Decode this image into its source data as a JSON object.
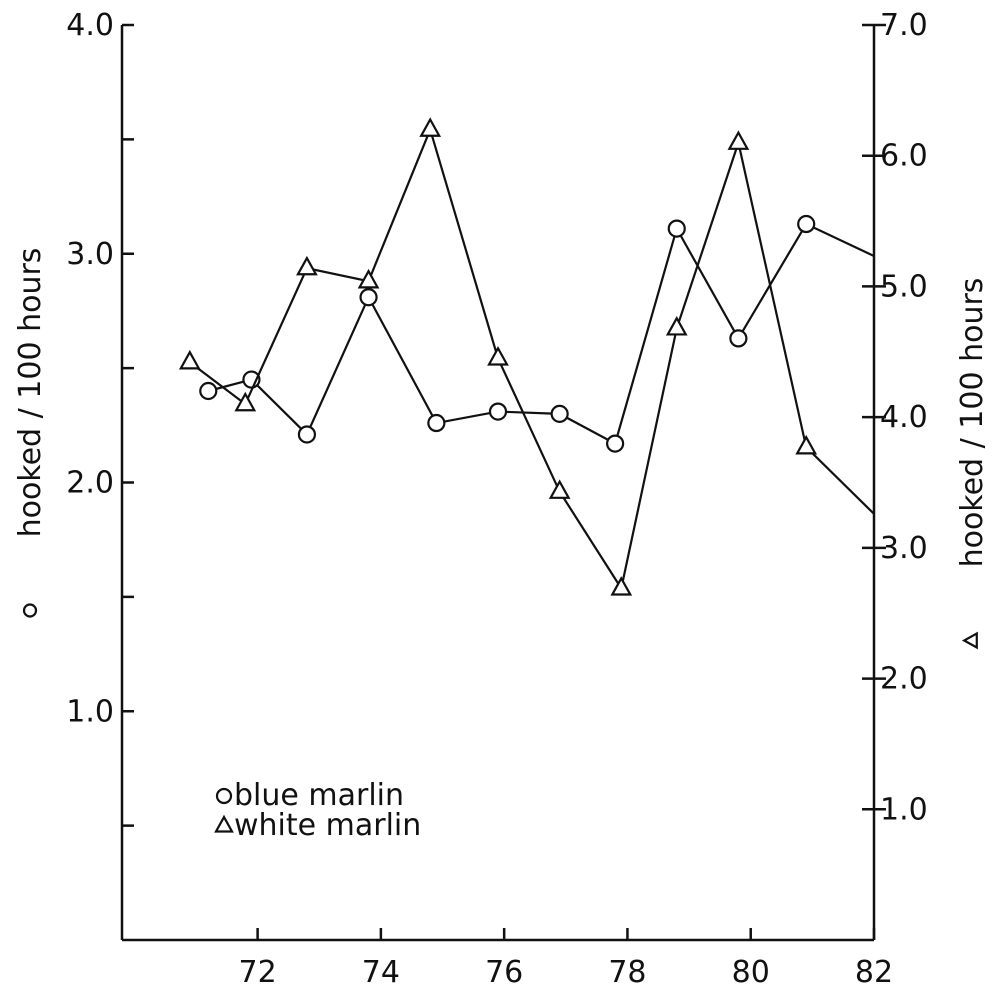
{
  "chart_data": {
    "type": "line",
    "x_ticks": [
      "72",
      "74",
      "76",
      "78",
      "80",
      "82"
    ],
    "x_tick_values": [
      72,
      74,
      76,
      78,
      80,
      82
    ],
    "xlim": [
      69.8,
      82
    ],
    "left_axis": {
      "label": "hooked / 100 hours",
      "marker_symbol": "circle",
      "ylim": [
        0,
        4.0
      ],
      "ticks": [
        0.5,
        1.0,
        1.5,
        2.0,
        2.5,
        3.0,
        3.5,
        4.0
      ],
      "tick_labels": {
        "1.0": "1.0",
        "2.0": "2.0",
        "3.0": "3.0",
        "4.0": "4.0"
      }
    },
    "right_axis": {
      "label": "hooked / 100 hours",
      "marker_symbol": "triangle",
      "ylim": [
        0,
        7.0
      ],
      "ticks": [
        1.0,
        2.0,
        3.0,
        4.0,
        5.0,
        6.0,
        7.0
      ],
      "tick_labels": {
        "1.0": "1.0",
        "2.0": "2.0",
        "3.0": "3.0",
        "4.0": "4.0",
        "5.0": "5.0",
        "6.0": "6.0",
        "7.0": "7.0"
      }
    },
    "series": [
      {
        "name": "blue marlin",
        "axis": "left",
        "marker": "circle",
        "x": [
          71.2,
          71.9,
          72.8,
          73.8,
          74.9,
          75.9,
          76.9,
          77.8,
          78.8,
          79.8,
          80.9,
          82.0
        ],
        "y": [
          2.4,
          2.45,
          2.21,
          2.81,
          2.26,
          2.31,
          2.3,
          2.17,
          3.11,
          2.63,
          3.13,
          2.99
        ],
        "terminal_marker": false
      },
      {
        "name": "white marlin",
        "axis": "right",
        "marker": "triangle",
        "x": [
          70.9,
          71.8,
          72.8,
          73.8,
          74.8,
          75.9,
          76.9,
          77.9,
          78.8,
          79.8,
          80.9,
          82.0
        ],
        "y": [
          4.42,
          4.1,
          5.14,
          5.04,
          6.2,
          4.45,
          3.43,
          2.69,
          4.68,
          6.1,
          3.77,
          3.26
        ],
        "terminal_marker": false
      }
    ],
    "legend": {
      "placement": "lower-left",
      "entries": [
        {
          "symbol": "circle",
          "label": "blue marlin"
        },
        {
          "symbol": "triangle",
          "label": "white marlin"
        }
      ]
    },
    "grid": false
  }
}
